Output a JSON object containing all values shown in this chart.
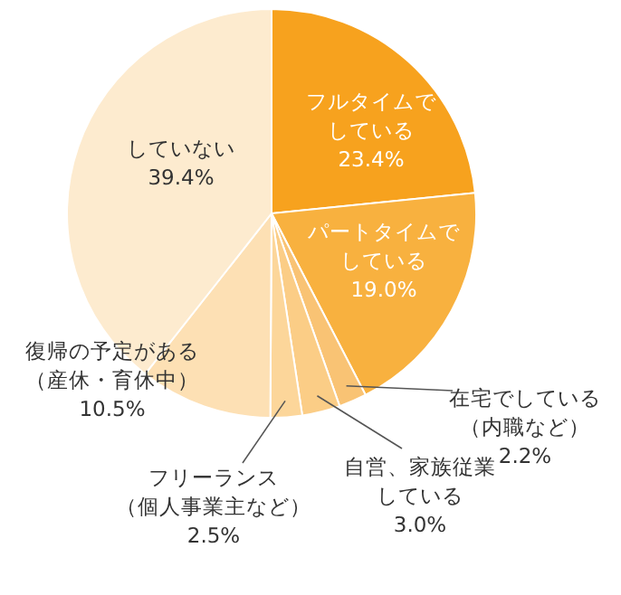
{
  "chart_data": {
    "type": "pie",
    "categories": [
      "フルタイムでしている",
      "パートタイムでしている",
      "在宅でしている（内職など）",
      "自営、家族従業している",
      "フリーランス（個人事業主など）",
      "復帰の予定がある（産休・育休中）",
      "していない"
    ],
    "values": [
      23.4,
      19.0,
      2.2,
      3.0,
      2.5,
      10.5,
      39.4
    ],
    "value_labels": [
      "23.4%",
      "19.0%",
      "2.2%",
      "3.0%",
      "2.5%",
      "10.5%",
      "39.4%"
    ],
    "colors": [
      "#f7a21e",
      "#f8b13f",
      "#f9c374",
      "#fbcd86",
      "#fcd69a",
      "#fde0b4",
      "#fdebcf"
    ]
  }
}
